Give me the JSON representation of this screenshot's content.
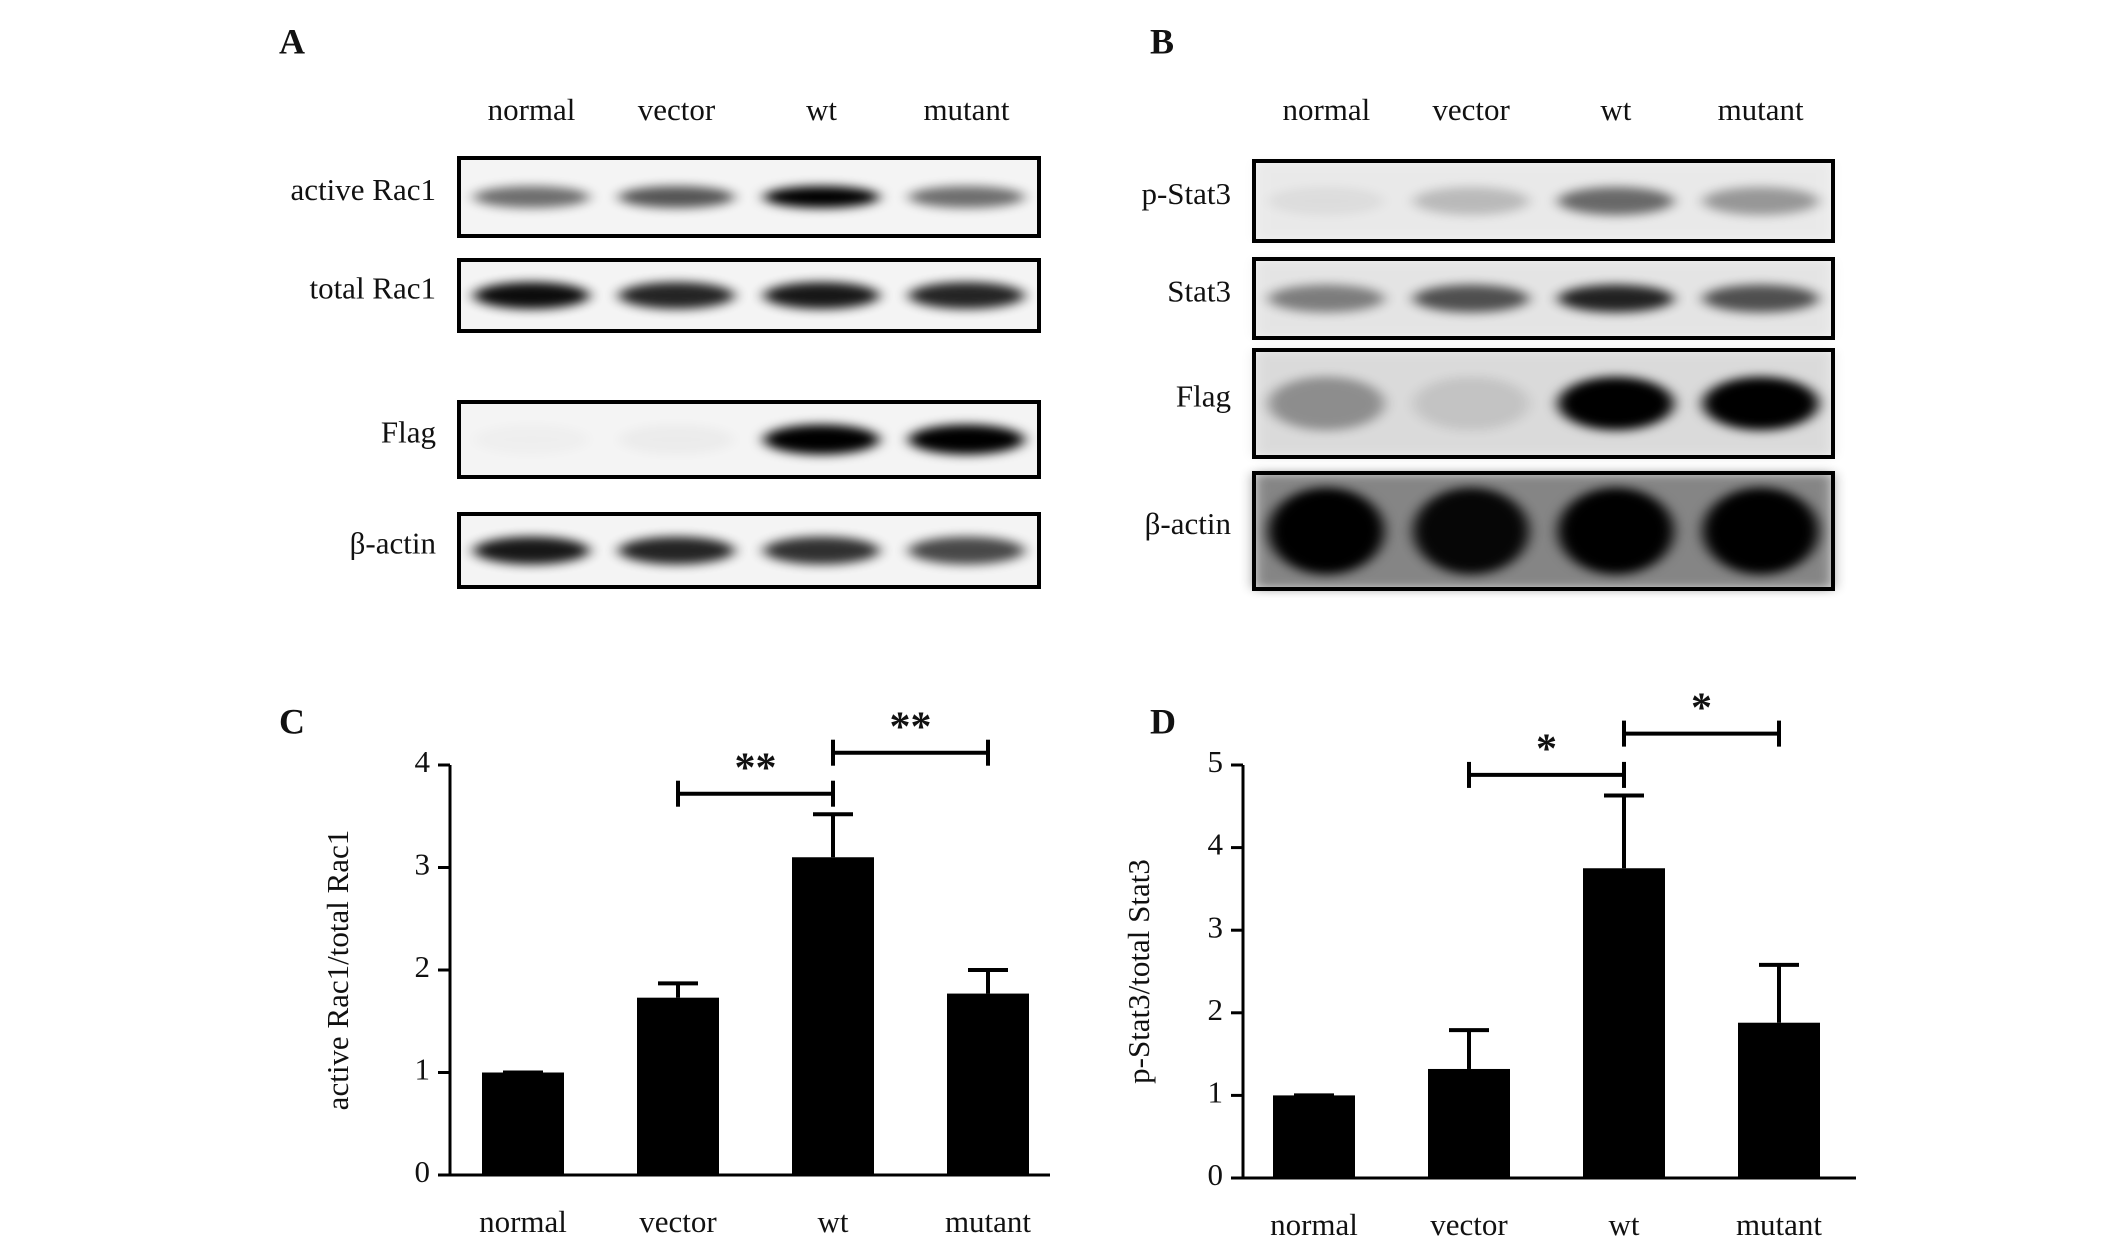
{
  "panel_labels": [
    "A",
    "B",
    "C",
    "D"
  ],
  "blots": [
    {
      "lanes": [
        "normal",
        "vector",
        "wt",
        "mutant"
      ],
      "rows": [
        "active Rac1",
        "total Rac1",
        "Flag",
        "β-actin"
      ]
    },
    {
      "lanes": [
        "normal",
        "vector",
        "wt",
        "mutant"
      ],
      "rows": [
        "p-Stat3",
        "Stat3",
        "Flag",
        "β-actin"
      ]
    }
  ],
  "chart_data": [
    {
      "type": "bar",
      "ylabel": "active Rac1/total Rac1",
      "categories": [
        "normal",
        "vector",
        "wt",
        "mutant"
      ],
      "values": [
        1,
        1.73,
        3.1,
        1.77
      ],
      "errors": [
        0,
        0.14,
        0.42,
        0.23
      ],
      "color": "#000000",
      "ylim": [
        0,
        4
      ],
      "yticks": [
        0,
        1,
        2,
        3,
        4
      ],
      "grid": false,
      "annotations": [
        {
          "label": "**",
          "between": [
            "vector",
            "wt"
          ]
        },
        {
          "label": "**",
          "between": [
            "wt",
            "mutant"
          ]
        }
      ]
    },
    {
      "type": "bar",
      "ylabel": "p-Stat3/total Stat3",
      "categories": [
        "normal",
        "vector",
        "wt",
        "mutant"
      ],
      "values": [
        1,
        1.32,
        3.75,
        1.88
      ],
      "errors": [
        0,
        0.47,
        0.88,
        0.7
      ],
      "color": "#000000",
      "ylim": [
        0,
        5
      ],
      "yticks": [
        0,
        1,
        2,
        3,
        4,
        5
      ],
      "grid": false,
      "annotations": [
        {
          "label": "*",
          "between": [
            "vector",
            "wt"
          ]
        },
        {
          "label": "*",
          "between": [
            "wt",
            "mutant"
          ]
        }
      ]
    }
  ]
}
